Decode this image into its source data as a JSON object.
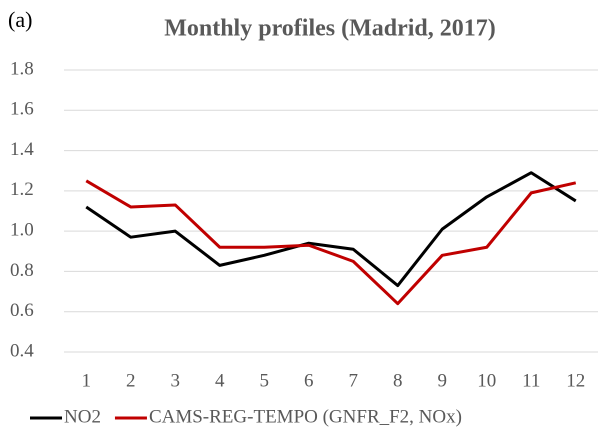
{
  "chart_data": {
    "type": "line",
    "annotation": "(a)",
    "title": "Monthly profiles (Madrid, 2017)",
    "categories": [
      "1",
      "2",
      "3",
      "4",
      "5",
      "6",
      "7",
      "8",
      "9",
      "10",
      "11",
      "12"
    ],
    "series": [
      {
        "name": "NO2",
        "color": "#000000",
        "values": [
          1.12,
          0.97,
          1.0,
          0.83,
          0.88,
          0.94,
          0.91,
          0.73,
          1.01,
          1.17,
          1.29,
          1.15
        ]
      },
      {
        "name": "CAMS-REG-TEMPO (GNFR_F2, NOx)",
        "color": "#c00000",
        "values": [
          1.25,
          1.12,
          1.13,
          0.92,
          0.92,
          0.93,
          0.85,
          0.64,
          0.88,
          0.92,
          1.19,
          1.24
        ]
      }
    ],
    "ylim": [
      0.4,
      1.8
    ],
    "yticks": [
      0.4,
      0.6,
      0.8,
      {
        "value": 1,
        "label": "1.0"
      },
      1.2,
      1.4,
      1.6,
      1.8
    ],
    "grid": true,
    "legend": "bottom"
  }
}
